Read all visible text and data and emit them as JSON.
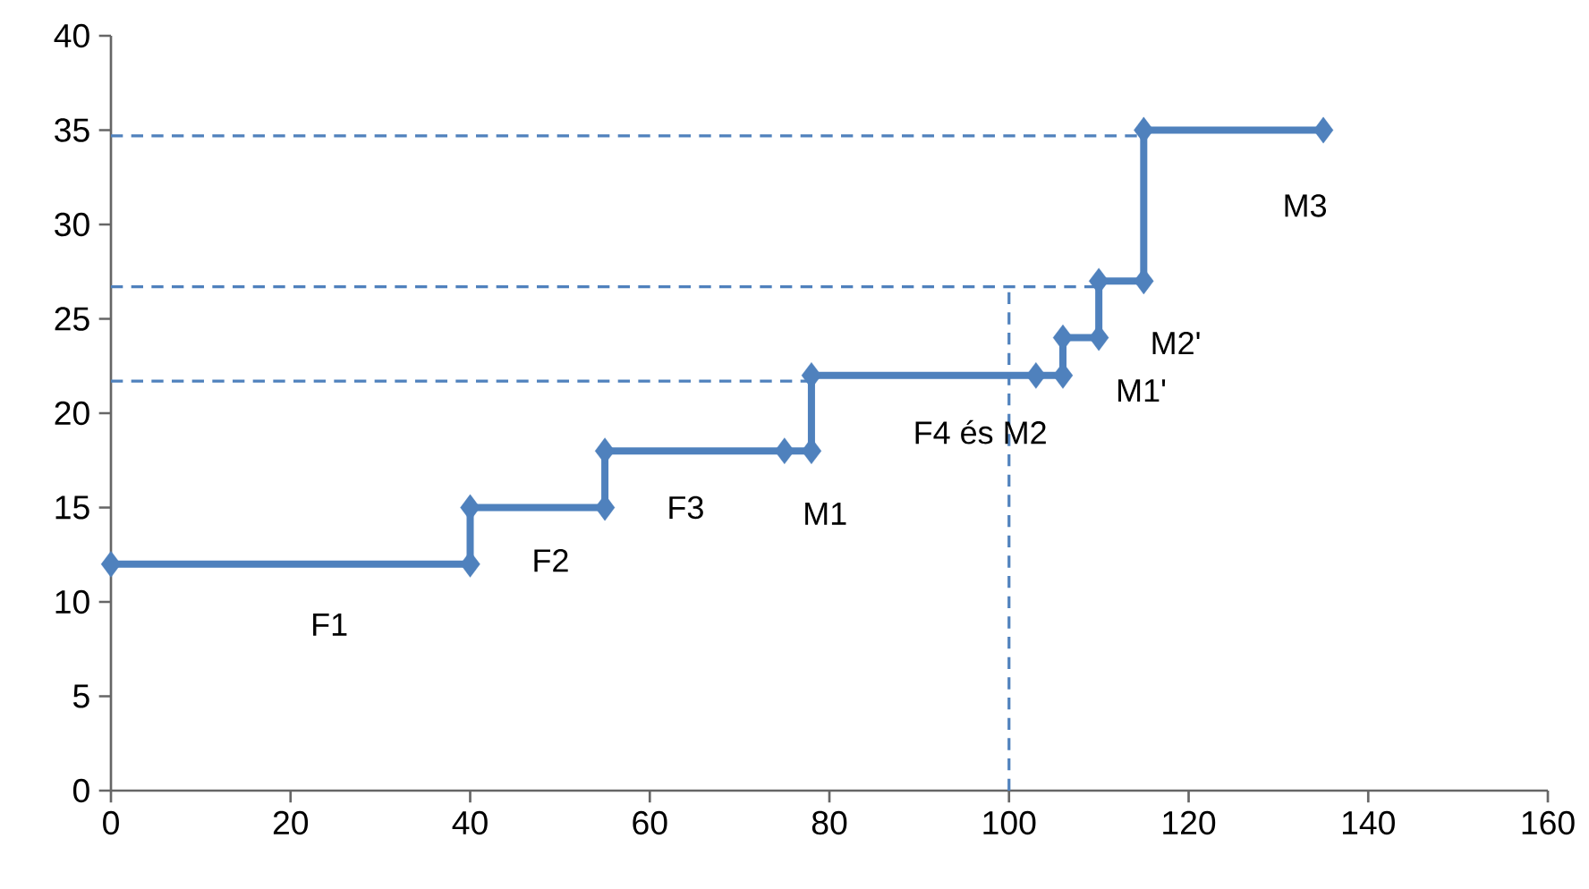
{
  "chart_data": {
    "type": "line",
    "xlim": [
      0,
      160
    ],
    "ylim": [
      0,
      40
    ],
    "xticks": [
      0,
      20,
      40,
      60,
      80,
      100,
      120,
      140,
      160
    ],
    "yticks": [
      0,
      5,
      10,
      15,
      20,
      25,
      30,
      35,
      40
    ],
    "grid": false,
    "marker": "diamond",
    "line_style": "solid",
    "series": [
      {
        "color": "#4f81bd",
        "x": [
          0,
          40,
          40,
          55,
          55,
          75,
          78,
          78,
          103,
          106,
          106,
          110,
          110,
          115,
          115,
          135
        ],
        "values": [
          12,
          12,
          15,
          15,
          18,
          18,
          18,
          22,
          22,
          22,
          24,
          24,
          27,
          27,
          35,
          35
        ]
      },
      {
        "color": "#4f81bd",
        "marker": "none",
        "line_style": "dashed",
        "x": [
          0,
          115
        ],
        "values": [
          34.7,
          34.7
        ]
      },
      {
        "color": "#4f81bd",
        "marker": "none",
        "line_style": "dashed",
        "x": [
          0,
          110
        ],
        "values": [
          26.7,
          26.7
        ]
      },
      {
        "color": "#4f81bd",
        "marker": "none",
        "line_style": "dashed",
        "x": [
          0,
          78
        ],
        "values": [
          21.7,
          21.7
        ]
      },
      {
        "color": "#4f81bd",
        "marker": "none",
        "line_style": "dashed",
        "x": [
          100,
          100
        ],
        "values": [
          0,
          26.7
        ]
      }
    ],
    "annotations": [
      "F1",
      "F2",
      "F3",
      "M1",
      "F4 és M2",
      "M1'",
      "M2'",
      "M3"
    ]
  }
}
